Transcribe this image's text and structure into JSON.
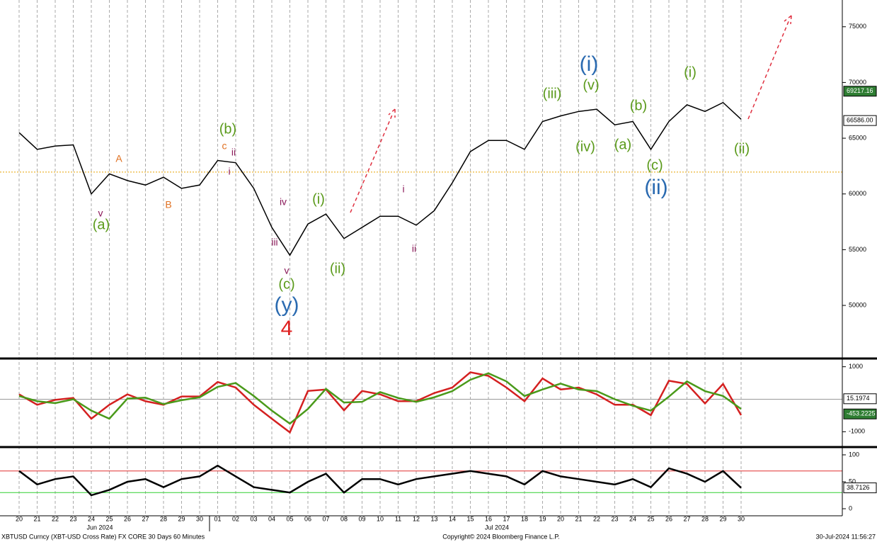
{
  "chart_data": [
    {
      "type": "line",
      "name": "price",
      "categories": [
        "20",
        "21",
        "22",
        "23",
        "24",
        "25",
        "26",
        "27",
        "28",
        "29",
        "30",
        "01",
        "02",
        "03",
        "04",
        "05",
        "06",
        "07",
        "08",
        "09",
        "10",
        "11",
        "12",
        "13",
        "14",
        "15",
        "16",
        "17",
        "18",
        "19",
        "20",
        "21",
        "22",
        "23",
        "24",
        "25",
        "26",
        "27",
        "28",
        "29",
        "30"
      ],
      "months": [
        "Jun 2024",
        "Jul 2024"
      ],
      "series": [
        {
          "color": "#000000",
          "values": [
            65500,
            64000,
            64300,
            64400,
            60000,
            61800,
            61200,
            60800,
            61500,
            60500,
            60800,
            63000,
            62800,
            60500,
            57000,
            54500,
            57300,
            58200,
            56000,
            57000,
            58000,
            58000,
            57200,
            58500,
            61000,
            63800,
            64800,
            64800,
            64000,
            66500,
            67000,
            67400,
            67600,
            66200,
            66500,
            64000,
            66500,
            68000,
            67400,
            68200,
            66700
          ]
        }
      ],
      "ylim": [
        45300,
        77400
      ],
      "yticks": [
        50000,
        55000,
        60000,
        65000,
        70000,
        75000
      ],
      "hline": {
        "value": 61960,
        "color": "#e6a100"
      },
      "tags": [
        {
          "value": 69217.16,
          "color": "#2e7d32"
        },
        {
          "value": 66586,
          "label": "66586.00",
          "color": "#000000"
        }
      ],
      "annotations": [
        {
          "text": "(a)",
          "color": "#5a9a1a"
        },
        {
          "text": "v",
          "color": "#8b1a5a"
        },
        {
          "text": "A",
          "color": "#e07020"
        },
        {
          "text": "B",
          "color": "#e07020"
        },
        {
          "text": "(b)",
          "color": "#5a9a1a"
        },
        {
          "text": "c",
          "color": "#e07020"
        },
        {
          "text": "ii",
          "color": "#8b1a5a"
        },
        {
          "text": "i",
          "color": "#8b1a5a"
        },
        {
          "text": "iv",
          "color": "#8b1a5a"
        },
        {
          "text": "iii",
          "color": "#8b1a5a"
        },
        {
          "text": "v",
          "color": "#8b1a5a"
        },
        {
          "text": "(c)",
          "color": "#5a9a1a"
        },
        {
          "text": "(y)",
          "color": "#2a6ab0"
        },
        {
          "text": "4",
          "color": "#e02020"
        },
        {
          "text": "(i)",
          "color": "#5a9a1a"
        },
        {
          "text": "(ii)",
          "color": "#5a9a1a"
        },
        {
          "text": "i",
          "color": "#8b1a5a"
        },
        {
          "text": "ii",
          "color": "#8b1a5a"
        },
        {
          "text": "(iii)",
          "color": "#5a9a1a"
        },
        {
          "text": "(i)",
          "color": "#2a6ab0"
        },
        {
          "text": "(v)",
          "color": "#5a9a1a"
        },
        {
          "text": "(iv)",
          "color": "#5a9a1a"
        },
        {
          "text": "(b)",
          "color": "#5a9a1a"
        },
        {
          "text": "(a)",
          "color": "#5a9a1a"
        },
        {
          "text": "(c)",
          "color": "#5a9a1a"
        },
        {
          "text": "(ii)",
          "color": "#2a6ab0"
        },
        {
          "text": "(i)",
          "color": "#5a9a1a"
        },
        {
          "text": "(ii)",
          "color": "#5a9a1a"
        }
      ]
    },
    {
      "type": "line",
      "name": "macd",
      "series": [
        {
          "color": "#d42020",
          "values": [
            150,
            -170,
            -20,
            40,
            -600,
            -170,
            150,
            -60,
            -170,
            85,
            85,
            530,
            360,
            -170,
            -600,
            -1020,
            255,
            300,
            -340,
            255,
            150,
            -60,
            -60,
            190,
            360,
            830,
            720,
            360,
            -60,
            640,
            300,
            360,
            150,
            -170,
            -170,
            -490,
            570,
            470,
            -130,
            470,
            -490
          ]
        },
        {
          "color": "#4a9a1a",
          "values": [
            100,
            -60,
            -120,
            0,
            -350,
            -600,
            20,
            50,
            -150,
            -30,
            60,
            380,
            500,
            100,
            -350,
            -750,
            -300,
            320,
            -100,
            -80,
            220,
            40,
            -80,
            60,
            250,
            600,
            800,
            550,
            100,
            300,
            480,
            300,
            250,
            0,
            -200,
            -350,
            80,
            550,
            250,
            100,
            -300
          ]
        }
      ],
      "ylim": [
        -1450,
        1210
      ],
      "yticks": [
        -1000,
        1000
      ],
      "hline": {
        "value": 0,
        "color": "#999999"
      },
      "tags": [
        {
          "value": 15.1974,
          "color": "#000000"
        },
        {
          "value": -453.2225,
          "color": "#2e7d32"
        }
      ]
    },
    {
      "type": "line",
      "name": "rsi",
      "series": [
        {
          "color": "#000000",
          "values": [
            70,
            45,
            55,
            60,
            25,
            35,
            50,
            55,
            40,
            55,
            60,
            80,
            60,
            40,
            35,
            30,
            50,
            65,
            30,
            55,
            55,
            45,
            55,
            60,
            65,
            70,
            65,
            60,
            45,
            70,
            60,
            55,
            50,
            45,
            55,
            40,
            75,
            65,
            50,
            70,
            38.7126
          ]
        }
      ],
      "ylim": [
        -11.8,
        111.8
      ],
      "yticks": [
        0,
        50,
        100
      ],
      "hlines": [
        {
          "value": 70,
          "color": "#e03030"
        },
        {
          "value": 30,
          "color": "#30d030"
        }
      ],
      "tags": [
        {
          "value": 38.7126,
          "color": "#000000"
        }
      ]
    }
  ],
  "footer": {
    "left": "XBTUSD Curncy (XBT-USD Cross Rate) FX CORE 30 Days 60 Minutes",
    "center": "Copyright© 2024 Bloomberg Finance L.P.",
    "right": "30-Jul-2024 11:56:27"
  }
}
